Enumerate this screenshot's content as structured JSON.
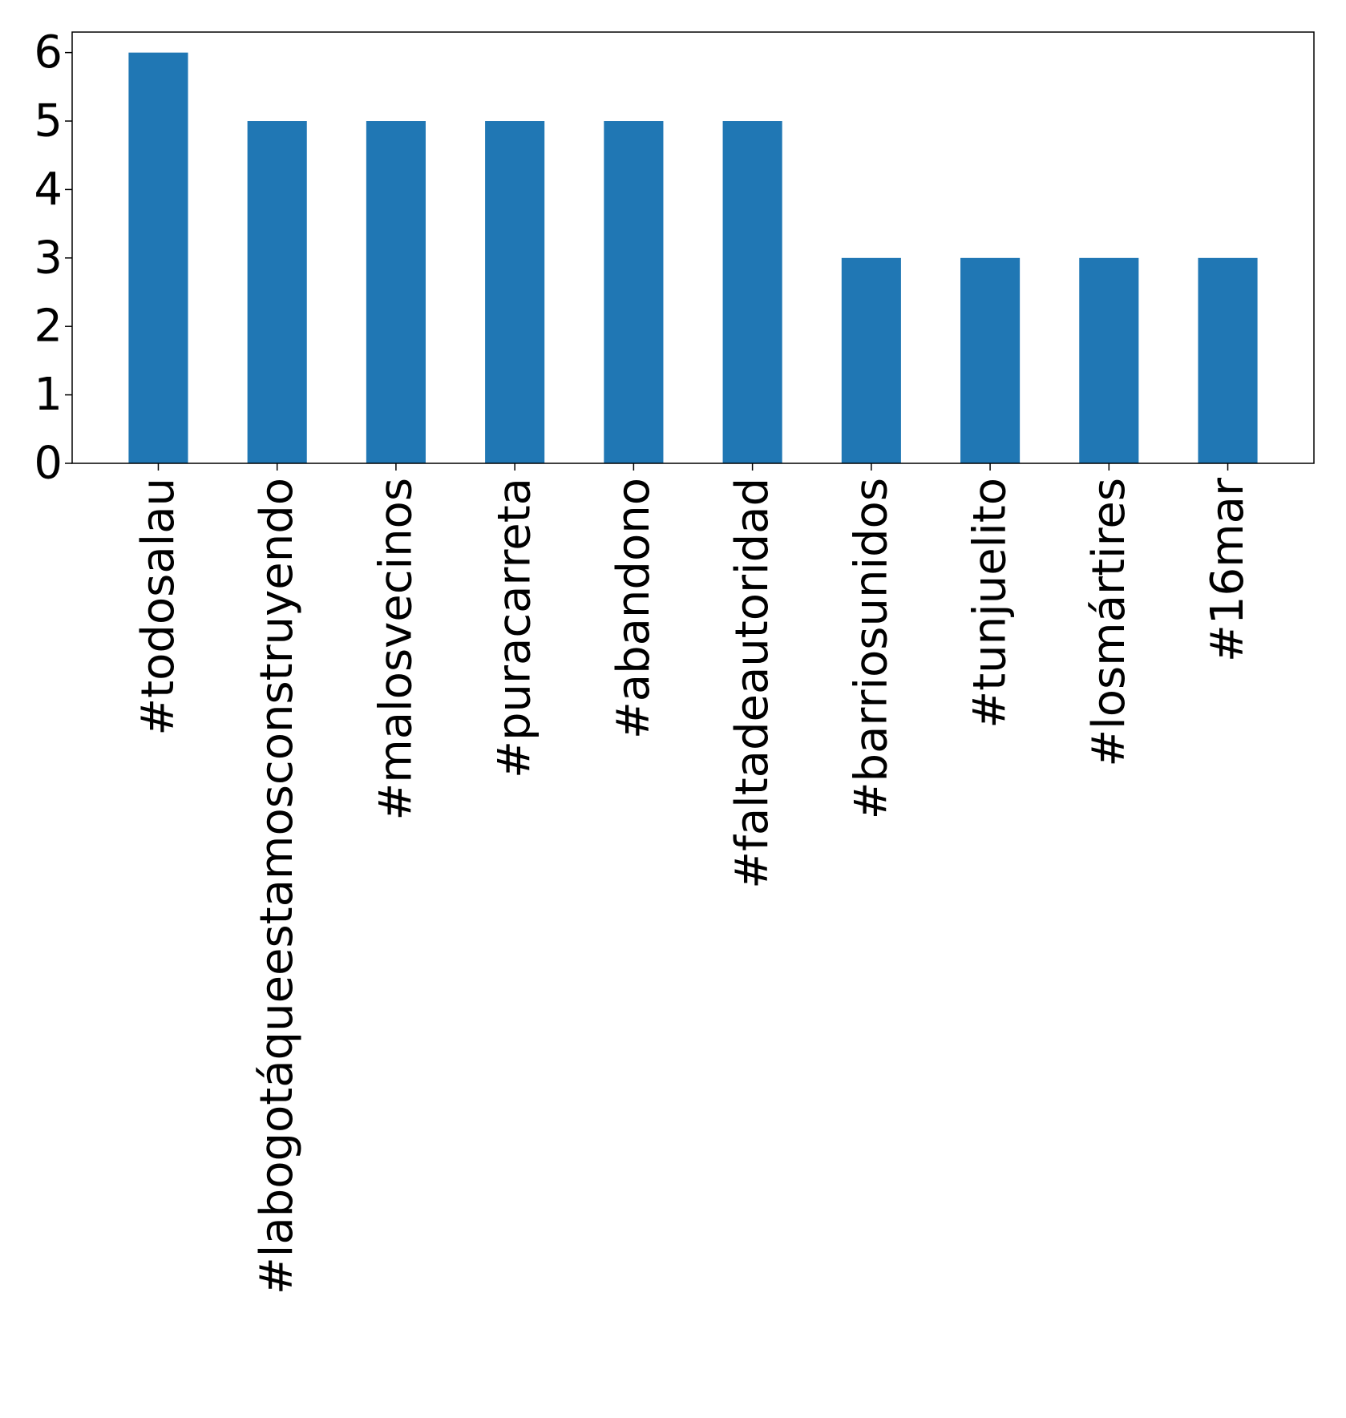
{
  "chart_data": {
    "type": "bar",
    "title": "",
    "xlabel": "",
    "ylabel": "",
    "categories": [
      "#todosalau",
      "#labogotáqueestamosconstruyendo",
      "#malosvecinos",
      "#puracarreta",
      "#abandono",
      "#faltadeautoridad",
      "#barriosunidos",
      "#tunjuelito",
      "#losmártires",
      "#16mar"
    ],
    "values": [
      6,
      5,
      5,
      5,
      5,
      5,
      3,
      3,
      3,
      3
    ],
    "ylim": [
      0,
      6.3
    ],
    "yticks": [
      0,
      1,
      2,
      3,
      4,
      5,
      6
    ],
    "grid": false,
    "legend": "none",
    "colors": {
      "bar": "#2077b4",
      "axis": "#000000"
    }
  }
}
